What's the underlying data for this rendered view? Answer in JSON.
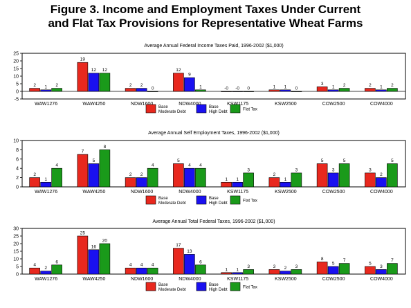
{
  "figure": {
    "title_line1": "Figure 3. Income and Employment Taxes Under Current",
    "title_line2": "and Flat Tax Provisions for Representative Wheat Farms"
  },
  "chart_data": [
    {
      "type": "bar",
      "title": "Average Annual Federal Income Taxes Paid, 1996-2002 ($1,000)",
      "categories": [
        "WAW1276",
        "WAW4250",
        "NDW1600",
        "NDW4000",
        "KSW1175",
        "KSW2500",
        "COW2500",
        "COW4000"
      ],
      "series": [
        {
          "name": "Base Moderate Debt",
          "color": "#e8281e",
          "values": [
            2,
            19,
            2,
            12,
            0,
            1,
            3,
            2
          ],
          "labels": [
            "2",
            "19",
            "2",
            "12",
            "-0",
            "1",
            "3",
            "2"
          ]
        },
        {
          "name": "Base High Debt",
          "color": "#1a10f0",
          "values": [
            1,
            12,
            2,
            9,
            0,
            1,
            1,
            1
          ],
          "labels": [
            "1",
            "12",
            "2",
            "9",
            "-0",
            "1",
            "1",
            "1"
          ]
        },
        {
          "name": "Flat Tax",
          "color": "#1a9a1a",
          "values": [
            2,
            12,
            0,
            1,
            0,
            0,
            2,
            2
          ],
          "labels": [
            "2",
            "12",
            "0",
            "1",
            "0",
            "0",
            "2",
            "2"
          ]
        }
      ],
      "ylim": [
        -5,
        25
      ],
      "yticks": [
        25,
        20,
        15,
        10,
        5,
        0,
        -5
      ],
      "grid": false,
      "legend_position": "bottom-center"
    },
    {
      "type": "bar",
      "title": "Average Annual Self Employment Taxes, 1996-2002 ($1,000)",
      "categories": [
        "WAW1276",
        "WAW4250",
        "NDW1600",
        "NDW4000",
        "KSW1175",
        "KSW2500",
        "COW2500",
        "COW4000"
      ],
      "series": [
        {
          "name": "Base Moderate Debt",
          "color": "#e8281e",
          "values": [
            2,
            7,
            2,
            5,
            1,
            2,
            5,
            3
          ],
          "labels": [
            "2",
            "7",
            "2",
            "5",
            "1",
            "2",
            "5",
            "3"
          ]
        },
        {
          "name": "Base High Debt",
          "color": "#1a10f0",
          "values": [
            1,
            5,
            2,
            4,
            1,
            1,
            3,
            2
          ],
          "labels": [
            "1",
            "5",
            "2",
            "4",
            "1",
            "1",
            "3",
            "2"
          ]
        },
        {
          "name": "Flat Tax",
          "color": "#1a9a1a",
          "values": [
            4,
            8,
            4,
            4,
            3,
            3,
            5,
            5
          ],
          "labels": [
            "4",
            "8",
            "4",
            "4",
            "3",
            "3",
            "5",
            "5"
          ]
        }
      ],
      "ylim": [
        0,
        10
      ],
      "yticks": [
        10,
        8,
        6,
        4,
        2,
        0
      ],
      "grid": false,
      "legend_position": "bottom-center"
    },
    {
      "type": "bar",
      "title": "Average Annual Total Federal Taxes, 1996-2002 ($1,000)",
      "categories": [
        "WAW1276",
        "WAW4250",
        "NDW1600",
        "NDW4000",
        "KSW1175",
        "KSW2500",
        "COW2500",
        "COW4000"
      ],
      "series": [
        {
          "name": "Base Moderate Debt",
          "color": "#e8281e",
          "values": [
            4,
            25,
            4,
            17,
            1,
            3,
            8,
            5
          ],
          "labels": [
            "4",
            "25",
            "4",
            "17",
            "1",
            "3",
            "8",
            "5"
          ]
        },
        {
          "name": "Base High Debt",
          "color": "#1a10f0",
          "values": [
            2,
            16,
            4,
            13,
            1,
            2,
            5,
            3
          ],
          "labels": [
            "2",
            "16",
            "4",
            "13",
            "1",
            "2",
            "5",
            "3"
          ]
        },
        {
          "name": "Flat Tax",
          "color": "#1a9a1a",
          "values": [
            6,
            20,
            4,
            6,
            3,
            3,
            7,
            7
          ],
          "labels": [
            "6",
            "20",
            "4",
            "6",
            "3",
            "3",
            "7",
            "7"
          ]
        }
      ],
      "ylim": [
        0,
        30
      ],
      "yticks": [
        30,
        25,
        20,
        15,
        10,
        5,
        0
      ],
      "grid": false,
      "legend_position": "bottom-center"
    }
  ],
  "legend": [
    {
      "line1": "Base",
      "line2": "Moderate Debt",
      "color": "#e8281e"
    },
    {
      "line1": "Base",
      "line2": "High Debt",
      "color": "#1a10f0"
    },
    {
      "line1": "Flat Tax",
      "line2": "",
      "color": "#1a9a1a"
    }
  ]
}
